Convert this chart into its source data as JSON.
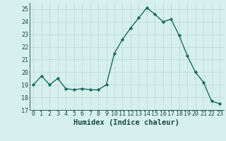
{
  "x": [
    0,
    1,
    2,
    3,
    4,
    5,
    6,
    7,
    8,
    9,
    10,
    11,
    12,
    13,
    14,
    15,
    16,
    17,
    18,
    19,
    20,
    21,
    22,
    23
  ],
  "y": [
    19.0,
    19.7,
    19.0,
    19.5,
    18.7,
    18.6,
    18.7,
    18.6,
    18.6,
    19.0,
    21.5,
    22.6,
    23.5,
    24.3,
    25.1,
    24.6,
    24.0,
    24.2,
    22.9,
    21.3,
    20.0,
    19.2,
    17.7,
    17.5
  ],
  "line_color": "#1a6b5e",
  "marker": "D",
  "markersize": 2.2,
  "linewidth": 1.0,
  "bg_color": "#d6f0ee",
  "grid_color": "#b8d8d4",
  "xlabel": "Humidex (Indice chaleur)",
  "xlabel_fontsize": 7.5,
  "xlabel_color": "#1a4a3a",
  "ylim": [
    17,
    25.5
  ],
  "yticks": [
    17,
    18,
    19,
    20,
    21,
    22,
    23,
    24,
    25
  ],
  "xticks": [
    0,
    1,
    2,
    3,
    4,
    5,
    6,
    7,
    8,
    9,
    10,
    11,
    12,
    13,
    14,
    15,
    16,
    17,
    18,
    19,
    20,
    21,
    22,
    23
  ],
  "tick_fontsize": 6.0,
  "tick_color": "#1a4a3a",
  "spine_color": "#1a4a3a"
}
